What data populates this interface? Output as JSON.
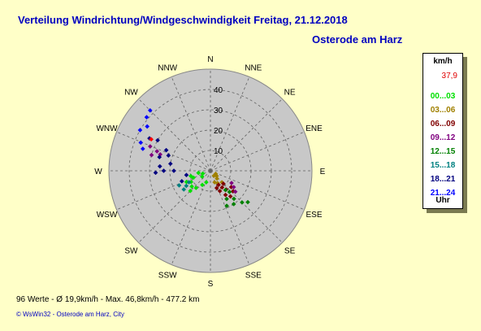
{
  "header": {
    "title": "Verteilung Windrichtung/Windgeschwindigkeit  Freitag, 21.12.2018",
    "location": "Osterode am Harz"
  },
  "legend": {
    "unit": "km/h",
    "max_value": "37,9",
    "footer": "Uhr",
    "items": [
      {
        "label": "00...03",
        "color": "#00e000"
      },
      {
        "label": "03...06",
        "color": "#a08000"
      },
      {
        "label": "06...09",
        "color": "#800000"
      },
      {
        "label": "09...12",
        "color": "#800080"
      },
      {
        "label": "12...15",
        "color": "#008000"
      },
      {
        "label": "15...18",
        "color": "#008080"
      },
      {
        "label": "18...21",
        "color": "#000080"
      },
      {
        "label": "21...24",
        "color": "#0000ff"
      }
    ]
  },
  "footer": {
    "stats": "96 Werte   -   Ø 19,9km/h  -  Max. 46,8km/h   -   477.2 km",
    "copyright": "© WsWin32   -   Osterode am Harz, City"
  },
  "chart_data": {
    "type": "scatter",
    "subtype": "polar-wind-rose",
    "directions": [
      "N",
      "NNE",
      "NE",
      "ENE",
      "E",
      "ESE",
      "SE",
      "SSE",
      "S",
      "SSW",
      "SW",
      "WSW",
      "W",
      "WNW",
      "NW",
      "NNW"
    ],
    "ring_labels": [
      "10",
      "20",
      "30",
      "40"
    ],
    "rlim": [
      0,
      50
    ],
    "grid": true,
    "legend_position": "right",
    "colors": {
      "disk": "#c8c8c8",
      "highlight": "#ff0000"
    },
    "series": [
      {
        "name": "00...03",
        "color": "#00e000",
        "points": [
          [
            255,
            10
          ],
          [
            248,
            9
          ],
          [
            240,
            11
          ],
          [
            230,
            12
          ],
          [
            220,
            11
          ],
          [
            210,
            8
          ],
          [
            200,
            6
          ],
          [
            235,
            5
          ],
          [
            250,
            4
          ],
          [
            260,
            6
          ],
          [
            225,
            14
          ],
          [
            245,
            13
          ]
        ]
      },
      {
        "name": "03...06",
        "color": "#a08000",
        "points": [
          [
            140,
            5
          ],
          [
            150,
            7
          ],
          [
            130,
            4
          ],
          [
            160,
            6
          ],
          [
            120,
            3
          ],
          [
            135,
            8
          ],
          [
            145,
            3
          ]
        ]
      },
      {
        "name": "06...09",
        "color": "#800000",
        "points": [
          [
            140,
            12
          ],
          [
            148,
            14
          ],
          [
            135,
            9
          ],
          [
            155,
            11
          ],
          [
            128,
            13
          ],
          [
            160,
            9
          ],
          [
            145,
            10
          ],
          [
            132,
            15
          ],
          [
            150,
            8
          ],
          [
            142,
            16
          ]
        ]
      },
      {
        "name": "09...12",
        "color": "#800080",
        "points": [
          [
            285,
            30
          ],
          [
            290,
            28
          ],
          [
            292,
            32
          ],
          [
            288,
            26
          ],
          [
            125,
            14
          ],
          [
            130,
            16
          ],
          [
            120,
            12
          ]
        ]
      },
      {
        "name": "12...15",
        "color": "#008000",
        "points": [
          [
            140,
            18
          ],
          [
            145,
            20
          ],
          [
            135,
            22
          ],
          [
            150,
            16
          ],
          [
            130,
            24
          ],
          [
            138,
            14
          ],
          [
            142,
            12
          ],
          [
            155,
            19
          ]
        ]
      },
      {
        "name": "15...18",
        "color": "#008080",
        "points": [
          [
            238,
            14
          ],
          [
            242,
            12
          ],
          [
            235,
            16
          ],
          [
            245,
            17
          ]
        ]
      },
      {
        "name": "18...21",
        "color": "#000080",
        "points": [
          [
            295,
            24
          ],
          [
            290,
            22
          ],
          [
            285,
            26
          ],
          [
            280,
            20
          ],
          [
            275,
            25
          ],
          [
            270,
            23
          ],
          [
            268,
            27
          ],
          [
            300,
            30
          ],
          [
            298,
            34
          ],
          [
            270,
            18
          ],
          [
            260,
            12
          ],
          [
            250,
            15
          ]
        ]
      },
      {
        "name": "21...24",
        "color": "#0000ff",
        "points": [
          [
            305,
            38
          ],
          [
            300,
            40
          ],
          [
            310,
            41
          ],
          [
            292,
            37
          ],
          [
            315,
            42
          ],
          [
            288,
            35
          ]
        ]
      }
    ],
    "highlight_points": [
      [
        298,
        33
      ]
    ]
  }
}
